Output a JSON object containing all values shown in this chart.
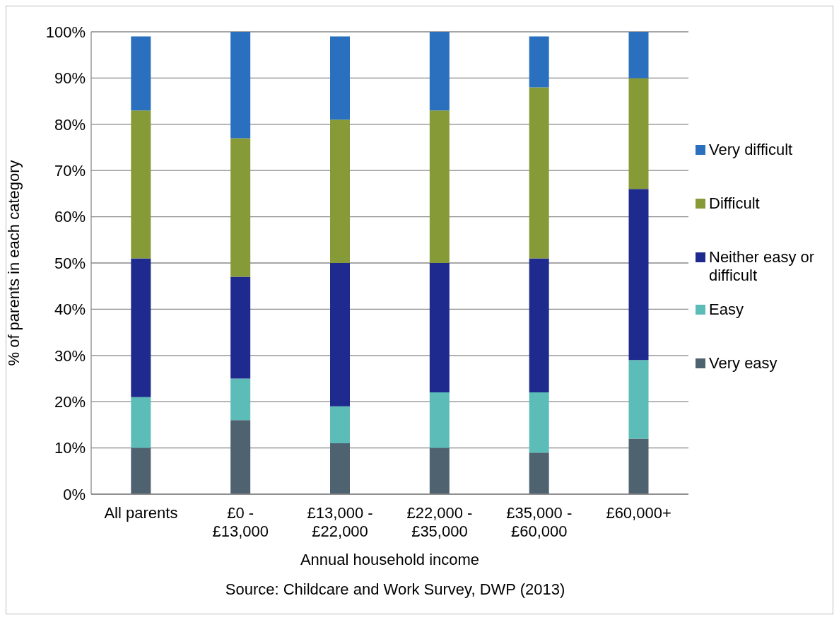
{
  "chart_data": {
    "type": "bar",
    "stacked": true,
    "xlabel": "Annual household income",
    "ylabel": "% of parents in each category",
    "categories": [
      "All parents",
      "£0 - £13,000",
      "£13,000 - £22,000",
      "£22,000 - £35,000",
      "£35,000 - £60,000",
      "£60,000+"
    ],
    "series": [
      {
        "name": "Very easy",
        "color": "#4f6270",
        "values": [
          10,
          16,
          11,
          10,
          9,
          12
        ]
      },
      {
        "name": "Easy",
        "color": "#5bbcb8",
        "values": [
          11,
          9,
          8,
          12,
          13,
          17
        ]
      },
      {
        "name": "Neither easy or difficult",
        "color": "#1f2a8e",
        "values": [
          30,
          22,
          31,
          28,
          29,
          37
        ]
      },
      {
        "name": "Difficult",
        "color": "#879a38",
        "values": [
          32,
          30,
          31,
          33,
          37,
          24
        ]
      },
      {
        "name": "Very difficult",
        "color": "#2a70bf",
        "values": [
          16,
          23,
          18,
          17,
          11,
          10
        ]
      }
    ],
    "ylim": [
      0,
      100
    ],
    "yticks": [
      {
        "value": 0,
        "label": "0%"
      },
      {
        "value": 10,
        "label": "10%"
      },
      {
        "value": 20,
        "label": "20%"
      },
      {
        "value": 30,
        "label": "30%"
      },
      {
        "value": 40,
        "label": "40%"
      },
      {
        "value": 50,
        "label": "50%"
      },
      {
        "value": 60,
        "label": "60%"
      },
      {
        "value": 70,
        "label": "70%"
      },
      {
        "value": 80,
        "label": "80%"
      },
      {
        "value": 90,
        "label": "90%"
      },
      {
        "value": 100,
        "label": "100%"
      }
    ],
    "grid": "y",
    "legend": "right",
    "annotations": [
      "Source: Childcare and Work Survey, DWP (2013)"
    ]
  }
}
